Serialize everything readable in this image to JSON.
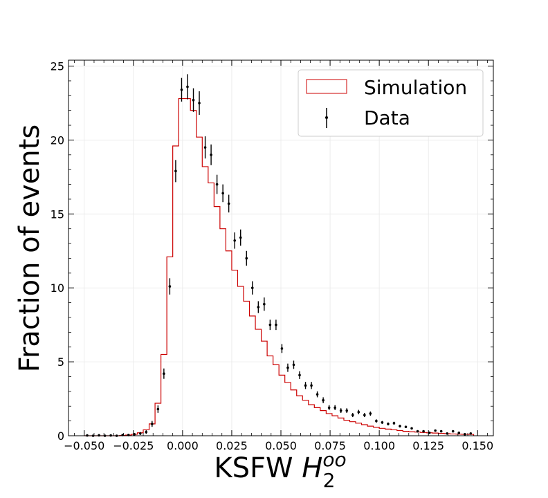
{
  "chart_data": {
    "type": "histogram",
    "xlabel": {
      "main": "KSFW ",
      "symbol": "H",
      "subscript": "2",
      "superscript": "oo"
    },
    "ylabel": "Fraction of events",
    "xlim": [
      -0.058,
      0.158
    ],
    "ylim": [
      0,
      25.4
    ],
    "xticks": [
      -0.05,
      -0.025,
      0.0,
      0.025,
      0.05,
      0.075,
      0.1,
      0.125,
      0.15
    ],
    "xtick_labels": [
      "−0.050",
      "−0.025",
      "0.000",
      "0.025",
      "0.050",
      "0.075",
      "0.100",
      "0.125",
      "0.150"
    ],
    "yticks": [
      0,
      5,
      10,
      15,
      20,
      25
    ],
    "ytick_labels": [
      "0",
      "5",
      "10",
      "15",
      "20",
      "25"
    ],
    "grid": true,
    "legend": {
      "placement": "top-right",
      "entries": [
        {
          "label": "Simulation",
          "style": "box",
          "color": "#cc0000"
        },
        {
          "label": "Data",
          "style": "errorbar",
          "color": "#000000"
        }
      ]
    },
    "series": [
      {
        "name": "Simulation",
        "style": "step",
        "color": "#cc0000",
        "bin_edges": [
          -0.05,
          -0.047,
          -0.044,
          -0.041,
          -0.038,
          -0.035,
          -0.032,
          -0.029,
          -0.026,
          -0.023,
          -0.02,
          -0.017,
          -0.014,
          -0.011,
          -0.008,
          -0.005,
          -0.002,
          0.001,
          0.004,
          0.007,
          0.01,
          0.013,
          0.016,
          0.019,
          0.022,
          0.025,
          0.028,
          0.031,
          0.034,
          0.037,
          0.04,
          0.043,
          0.046,
          0.049,
          0.052,
          0.055,
          0.058,
          0.061,
          0.064,
          0.067,
          0.07,
          0.073,
          0.076,
          0.079,
          0.082,
          0.085,
          0.088,
          0.091,
          0.094,
          0.097,
          0.1,
          0.103,
          0.106,
          0.109,
          0.112,
          0.115,
          0.118,
          0.121,
          0.124,
          0.127,
          0.13,
          0.133,
          0.136,
          0.139,
          0.142,
          0.145,
          0.148
        ],
        "values": [
          0.0,
          0.0,
          0.0,
          0.0,
          0.0,
          0.0,
          0.02,
          0.05,
          0.1,
          0.2,
          0.4,
          0.8,
          2.2,
          5.5,
          12.1,
          19.6,
          22.8,
          22.8,
          22.0,
          20.2,
          18.2,
          17.1,
          15.5,
          14.0,
          12.5,
          11.2,
          10.1,
          9.1,
          8.1,
          7.2,
          6.4,
          5.4,
          4.8,
          4.1,
          3.6,
          3.1,
          2.7,
          2.4,
          2.1,
          1.9,
          1.7,
          1.5,
          1.35,
          1.2,
          1.05,
          0.95,
          0.85,
          0.75,
          0.65,
          0.58,
          0.5,
          0.45,
          0.4,
          0.35,
          0.3,
          0.27,
          0.25,
          0.22,
          0.2,
          0.18,
          0.16,
          0.14,
          0.12,
          0.11,
          0.1,
          0.09
        ]
      },
      {
        "name": "Data",
        "style": "errorbar",
        "color": "#000000",
        "x": [
          -0.0485,
          -0.0455,
          -0.0425,
          -0.0395,
          -0.0365,
          -0.0335,
          -0.0305,
          -0.0275,
          -0.0245,
          -0.0215,
          -0.0185,
          -0.0155,
          -0.0125,
          -0.0095,
          -0.0065,
          -0.0035,
          -0.0005,
          0.0025,
          0.0055,
          0.0085,
          0.0115,
          0.0145,
          0.0175,
          0.0205,
          0.0235,
          0.0265,
          0.0295,
          0.0325,
          0.0355,
          0.0385,
          0.0415,
          0.0445,
          0.0475,
          0.0505,
          0.0535,
          0.0565,
          0.0595,
          0.0625,
          0.0655,
          0.0685,
          0.0715,
          0.0745,
          0.0775,
          0.0805,
          0.0835,
          0.0865,
          0.0895,
          0.0925,
          0.0955,
          0.0985,
          0.1015,
          0.1045,
          0.1075,
          0.1105,
          0.1135,
          0.1165,
          0.1195,
          0.1225,
          0.1255,
          0.1285,
          0.1315,
          0.1345,
          0.1375,
          0.1405,
          0.1435,
          0.1465
        ],
        "y": [
          0.02,
          0.0,
          0.03,
          0.0,
          0.02,
          0.0,
          0.05,
          0.05,
          0.1,
          0.15,
          0.25,
          0.8,
          1.8,
          4.2,
          10.1,
          17.9,
          23.4,
          23.6,
          22.7,
          22.5,
          19.5,
          19.0,
          17.0,
          16.4,
          15.7,
          13.2,
          13.4,
          12.0,
          10.0,
          8.7,
          8.9,
          7.5,
          7.5,
          5.9,
          4.6,
          4.8,
          4.1,
          3.4,
          3.4,
          2.8,
          2.4,
          1.9,
          1.9,
          1.7,
          1.7,
          1.4,
          1.6,
          1.4,
          1.5,
          1.0,
          0.9,
          0.8,
          0.85,
          0.65,
          0.6,
          0.5,
          0.3,
          0.3,
          0.2,
          0.35,
          0.3,
          0.15,
          0.3,
          0.2,
          0.1,
          0.15
        ],
        "yerr": [
          0.03,
          0.02,
          0.03,
          0.02,
          0.03,
          0.02,
          0.05,
          0.05,
          0.07,
          0.1,
          0.12,
          0.2,
          0.25,
          0.35,
          0.55,
          0.75,
          0.8,
          0.85,
          0.8,
          0.8,
          0.75,
          0.7,
          0.65,
          0.6,
          0.6,
          0.55,
          0.55,
          0.5,
          0.45,
          0.4,
          0.45,
          0.35,
          0.35,
          0.3,
          0.28,
          0.28,
          0.26,
          0.24,
          0.24,
          0.2,
          0.2,
          0.17,
          0.17,
          0.16,
          0.16,
          0.14,
          0.15,
          0.14,
          0.14,
          0.11,
          0.1,
          0.1,
          0.1,
          0.09,
          0.08,
          0.08,
          0.06,
          0.06,
          0.05,
          0.06,
          0.06,
          0.04,
          0.06,
          0.05,
          0.03,
          0.04
        ]
      }
    ]
  }
}
